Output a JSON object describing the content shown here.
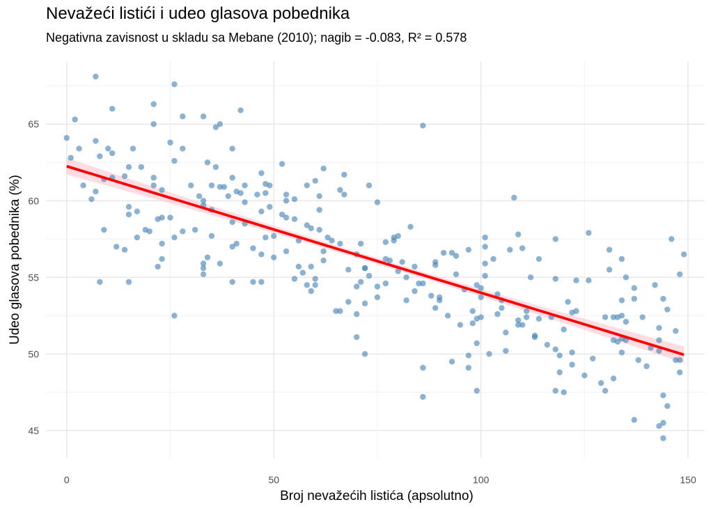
{
  "chart_data": {
    "type": "scatter",
    "title": "Nevažeći listići i udeo glasova pobednika",
    "subtitle": "Negativna zavisnost u skladu sa Mebane (2010); nagib = -0.083, R² = 0.578",
    "xlabel": "Broj nevažećih listića (apsolutno)",
    "ylabel": "Udeo glasova pobednika (%)",
    "xlim": [
      -5,
      154
    ],
    "ylim": [
      43.2,
      69.1
    ],
    "x_ticks": [
      0,
      50,
      100,
      150
    ],
    "x_tick_labels": [
      "0",
      "50",
      "100",
      "150"
    ],
    "y_ticks": [
      45,
      50,
      55,
      60,
      65
    ],
    "y_tick_labels": [
      "45",
      "50",
      "55",
      "60",
      "65"
    ],
    "grid": true,
    "point_color": "#4682b4",
    "fit_line": {
      "color": "#ff0000",
      "band_color": "#ffc0cb",
      "x_start": 0,
      "x_end": 149,
      "y_start": 62.25,
      "y_end": 49.95,
      "band_half_width_start": 0.55,
      "band_half_width_mid": 0.2,
      "band_half_width_end": 0.55
    },
    "slope": -0.083,
    "r_squared": 0.578,
    "points": [
      [
        0,
        64.1
      ],
      [
        1,
        62.8
      ],
      [
        2,
        65.3
      ],
      [
        3,
        63.4
      ],
      [
        4,
        61.0
      ],
      [
        6,
        60.1
      ],
      [
        7,
        68.1
      ],
      [
        7,
        63.9
      ],
      [
        7,
        60.6
      ],
      [
        8,
        62.9
      ],
      [
        8,
        54.7
      ],
      [
        9,
        61.4
      ],
      [
        9,
        58.1
      ],
      [
        10,
        63.4
      ],
      [
        11,
        66.0
      ],
      [
        11,
        63.1
      ],
      [
        11,
        61.5
      ],
      [
        12,
        57.0
      ],
      [
        14,
        61.6
      ],
      [
        14,
        56.8
      ],
      [
        15,
        62.2
      ],
      [
        15,
        59.6
      ],
      [
        15,
        59.1
      ],
      [
        15,
        54.7
      ],
      [
        16,
        63.4
      ],
      [
        17,
        59.3
      ],
      [
        17,
        57.6
      ],
      [
        18,
        62.2
      ],
      [
        19,
        58.1
      ],
      [
        20,
        58.0
      ],
      [
        21,
        66.3
      ],
      [
        21,
        65.0
      ],
      [
        21,
        61.5
      ],
      [
        21,
        61.0
      ],
      [
        22,
        55.7
      ],
      [
        22,
        58.8
      ],
      [
        23,
        60.7
      ],
      [
        23,
        57.2
      ],
      [
        23,
        58.9
      ],
      [
        23,
        56.2
      ],
      [
        25,
        63.8
      ],
      [
        25,
        58.9
      ],
      [
        26,
        67.6
      ],
      [
        26,
        62.6
      ],
      [
        26,
        57.6
      ],
      [
        26,
        52.5
      ],
      [
        28,
        65.5
      ],
      [
        28,
        63.4
      ],
      [
        28,
        58.0
      ],
      [
        30,
        61.0
      ],
      [
        31,
        58.1
      ],
      [
        32,
        60.3
      ],
      [
        33,
        65.5
      ],
      [
        33,
        60.0
      ],
      [
        33,
        59.7
      ],
      [
        33,
        55.9
      ],
      [
        33,
        55.6
      ],
      [
        33,
        55.2
      ],
      [
        34,
        62.5
      ],
      [
        34,
        56.3
      ],
      [
        35,
        61.0
      ],
      [
        35,
        59.4
      ],
      [
        35,
        57.7
      ],
      [
        36,
        64.8
      ],
      [
        36,
        62.2
      ],
      [
        37,
        65.0
      ],
      [
        37,
        60.9
      ],
      [
        37,
        55.9
      ],
      [
        38,
        60.9
      ],
      [
        39,
        60.3
      ],
      [
        40,
        63.4
      ],
      [
        40,
        61.5
      ],
      [
        40,
        58.6
      ],
      [
        40,
        57.0
      ],
      [
        40,
        54.7
      ],
      [
        41,
        60.6
      ],
      [
        41,
        57.2
      ],
      [
        42,
        65.9
      ],
      [
        42,
        60.5
      ],
      [
        43,
        61.0
      ],
      [
        43,
        59.9
      ],
      [
        43,
        58.5
      ],
      [
        45,
        56.9
      ],
      [
        45,
        54.7
      ],
      [
        46,
        60.4
      ],
      [
        47,
        61.8
      ],
      [
        47,
        59.3
      ],
      [
        47,
        56.5
      ],
      [
        47,
        54.7
      ],
      [
        48,
        61.1
      ],
      [
        48,
        60.5
      ],
      [
        48,
        57.6
      ],
      [
        49,
        61.0
      ],
      [
        49,
        59.6
      ],
      [
        50,
        57.7
      ],
      [
        50,
        56.3
      ],
      [
        52,
        62.4
      ],
      [
        52,
        59.1
      ],
      [
        53,
        60.4
      ],
      [
        53,
        60.0
      ],
      [
        53,
        58.9
      ],
      [
        53,
        56.7
      ],
      [
        55,
        60.1
      ],
      [
        55,
        58.8
      ],
      [
        55,
        54.9
      ],
      [
        56,
        57.4
      ],
      [
        56,
        55.7
      ],
      [
        57,
        55.3
      ],
      [
        58,
        61.0
      ],
      [
        58,
        58.4
      ],
      [
        58,
        54.5
      ],
      [
        59,
        58.2
      ],
      [
        59,
        55.7
      ],
      [
        59,
        54.1
      ],
      [
        60,
        61.3
      ],
      [
        60,
        54.9
      ],
      [
        60,
        54.5
      ],
      [
        61,
        60.3
      ],
      [
        61,
        59.4
      ],
      [
        61,
        58.1
      ],
      [
        62,
        62.1
      ],
      [
        62,
        56.7
      ],
      [
        62,
        56.1
      ],
      [
        63,
        57.6
      ],
      [
        64,
        57.4
      ],
      [
        65,
        52.8
      ],
      [
        66,
        60.7
      ],
      [
        66,
        57.2
      ],
      [
        66,
        52.8
      ],
      [
        67,
        61.7
      ],
      [
        67,
        60.4
      ],
      [
        68,
        55.5
      ],
      [
        68,
        53.4
      ],
      [
        70,
        56.5
      ],
      [
        70,
        54.4
      ],
      [
        70,
        52.6
      ],
      [
        70,
        51.1
      ],
      [
        71,
        57.2
      ],
      [
        71,
        54.7
      ],
      [
        72,
        55.6
      ],
      [
        72,
        55.6
      ],
      [
        72,
        53.3
      ],
      [
        72,
        50.0
      ],
      [
        73,
        61.0
      ],
      [
        73,
        55.1
      ],
      [
        75,
        59.9
      ],
      [
        75,
        54.4
      ],
      [
        75,
        53.7
      ],
      [
        77,
        57.3
      ],
      [
        77,
        56.2
      ],
      [
        77,
        54.6
      ],
      [
        78,
        56.1
      ],
      [
        79,
        57.4
      ],
      [
        79,
        57.6
      ],
      [
        80,
        57.7
      ],
      [
        80,
        55.4
      ],
      [
        81,
        56.0
      ],
      [
        82,
        55.0
      ],
      [
        82,
        53.5
      ],
      [
        83,
        58.3
      ],
      [
        84,
        55.7
      ],
      [
        84,
        54.1
      ],
      [
        85,
        54.6
      ],
      [
        86,
        64.9
      ],
      [
        86,
        54.6
      ],
      [
        86,
        49.1
      ],
      [
        86,
        47.2
      ],
      [
        88,
        53.8
      ],
      [
        89,
        56.0
      ],
      [
        89,
        55.8
      ],
      [
        89,
        53.0
      ],
      [
        90,
        53.7
      ],
      [
        90,
        53.5
      ],
      [
        91,
        56.6
      ],
      [
        92,
        52.5
      ],
      [
        93,
        56.6
      ],
      [
        93,
        49.5
      ],
      [
        94,
        56.4
      ],
      [
        94,
        55.2
      ],
      [
        95,
        51.9
      ],
      [
        96,
        54.2
      ],
      [
        97,
        56.8
      ],
      [
        97,
        49.9
      ],
      [
        97,
        49.1
      ],
      [
        98,
        52.8
      ],
      [
        98,
        52.0
      ],
      [
        99,
        54.5
      ],
      [
        99,
        52.3
      ],
      [
        99,
        50.7
      ],
      [
        99,
        47.6
      ],
      [
        100,
        54.3
      ],
      [
        100,
        53.7
      ],
      [
        100,
        52.4
      ],
      [
        101,
        57.6
      ],
      [
        101,
        57.0
      ],
      [
        101,
        55.9
      ],
      [
        101,
        55.1
      ],
      [
        102,
        50.0
      ],
      [
        103,
        56.2
      ],
      [
        104,
        53.9
      ],
      [
        104,
        52.6
      ],
      [
        105,
        53.5
      ],
      [
        105,
        53.0
      ],
      [
        106,
        51.4
      ],
      [
        106,
        50.2
      ],
      [
        107,
        56.8
      ],
      [
        108,
        60.2
      ],
      [
        109,
        57.8
      ],
      [
        109,
        52.2
      ],
      [
        109,
        51.9
      ],
      [
        110,
        56.9
      ],
      [
        110,
        51.9
      ],
      [
        111,
        52.8
      ],
      [
        111,
        52.4
      ],
      [
        112,
        55.0
      ],
      [
        113,
        51.2
      ],
      [
        113,
        51.1
      ],
      [
        114,
        56.2
      ],
      [
        114,
        52.3
      ],
      [
        116,
        50.6
      ],
      [
        117,
        52.4
      ],
      [
        118,
        57.5
      ],
      [
        118,
        54.9
      ],
      [
        118,
        50.3
      ],
      [
        118,
        47.6
      ],
      [
        119,
        49.9
      ],
      [
        119,
        48.8
      ],
      [
        120,
        51.6
      ],
      [
        120,
        47.5
      ],
      [
        121,
        53.4
      ],
      [
        122,
        52.7
      ],
      [
        122,
        50.1
      ],
      [
        122,
        49.3
      ],
      [
        123,
        54.8
      ],
      [
        123,
        52.8
      ],
      [
        125,
        48.6
      ],
      [
        126,
        57.9
      ],
      [
        126,
        54.8
      ],
      [
        127,
        49.7
      ],
      [
        129,
        48.1
      ],
      [
        130,
        52.4
      ],
      [
        130,
        47.6
      ],
      [
        131,
        56.8
      ],
      [
        131,
        55.5
      ],
      [
        132,
        52.4
      ],
      [
        132,
        50.9
      ],
      [
        132,
        48.4
      ],
      [
        133,
        52.4
      ],
      [
        133,
        50.8
      ],
      [
        134,
        56.2
      ],
      [
        134,
        53.5
      ],
      [
        134,
        52.5
      ],
      [
        134,
        51.0
      ],
      [
        134,
        50.1
      ],
      [
        135,
        55.0
      ],
      [
        135,
        52.1
      ],
      [
        135,
        50.9
      ],
      [
        137,
        54.3
      ],
      [
        137,
        53.6
      ],
      [
        137,
        45.7
      ],
      [
        138,
        49.6
      ],
      [
        139,
        52.4
      ],
      [
        140,
        49.2
      ],
      [
        141,
        50.4
      ],
      [
        142,
        54.5
      ],
      [
        143,
        51.7
      ],
      [
        143,
        50.9
      ],
      [
        143,
        50.2
      ],
      [
        143,
        45.3
      ],
      [
        144,
        53.6
      ],
      [
        144,
        47.3
      ],
      [
        144,
        45.5
      ],
      [
        144,
        44.5
      ],
      [
        145,
        52.9
      ],
      [
        145,
        46.6
      ],
      [
        146,
        57.5
      ],
      [
        147,
        51.5
      ],
      [
        147,
        49.6
      ],
      [
        148,
        55.2
      ],
      [
        148,
        49.6
      ],
      [
        148,
        48.8
      ],
      [
        149,
        56.5
      ]
    ]
  }
}
